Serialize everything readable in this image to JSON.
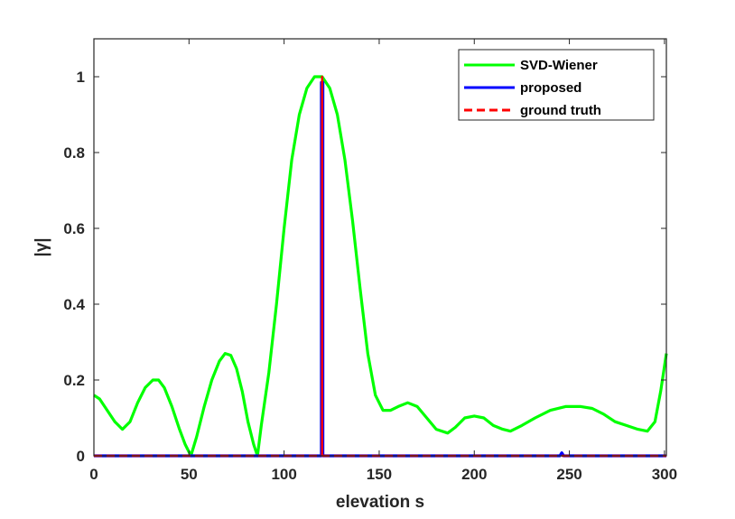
{
  "chart_data": {
    "type": "line",
    "title": "",
    "xlabel": "elevation s",
    "ylabel": "|γ|",
    "xlim": [
      0,
      301
    ],
    "ylim": [
      0,
      1.1
    ],
    "xticks": [
      0,
      50,
      100,
      150,
      200,
      250,
      300
    ],
    "yticks": [
      0,
      0.2,
      0.4,
      0.6,
      0.8,
      1
    ],
    "xtick_labels": [
      "0",
      "50",
      "100",
      "150",
      "200",
      "250",
      "300"
    ],
    "ytick_labels": [
      "0",
      "0.2",
      "0.4",
      "0.6",
      "0.8",
      "1"
    ],
    "grid": false,
    "legend_position": "top-right",
    "series": [
      {
        "name": "SVD-Wiener",
        "color": "#00ff00",
        "style": "solid",
        "x": [
          0,
          3,
          7,
          11,
          15,
          19,
          23,
          27,
          31,
          34,
          37,
          41,
          45,
          48,
          51,
          54,
          58,
          62,
          66,
          69,
          72,
          75,
          78,
          81,
          84,
          86,
          88,
          92,
          96,
          100,
          104,
          108,
          112,
          116,
          120,
          124,
          128,
          132,
          136,
          140,
          144,
          148,
          152,
          156,
          160,
          165,
          170,
          175,
          180,
          186,
          190,
          195,
          200,
          205,
          210,
          215,
          219,
          225,
          232,
          240,
          248,
          256,
          262,
          268,
          274,
          280,
          286,
          291,
          295,
          298,
          301
        ],
        "y": [
          0.16,
          0.15,
          0.12,
          0.09,
          0.07,
          0.09,
          0.14,
          0.18,
          0.2,
          0.2,
          0.18,
          0.13,
          0.07,
          0.03,
          0.0,
          0.05,
          0.13,
          0.2,
          0.25,
          0.27,
          0.265,
          0.23,
          0.17,
          0.09,
          0.03,
          0.0,
          0.08,
          0.22,
          0.4,
          0.6,
          0.78,
          0.9,
          0.97,
          1.0,
          1.0,
          0.97,
          0.9,
          0.78,
          0.62,
          0.44,
          0.27,
          0.16,
          0.12,
          0.12,
          0.13,
          0.14,
          0.13,
          0.1,
          0.07,
          0.06,
          0.075,
          0.1,
          0.105,
          0.1,
          0.08,
          0.07,
          0.065,
          0.08,
          0.1,
          0.12,
          0.13,
          0.13,
          0.125,
          0.11,
          0.09,
          0.08,
          0.07,
          0.065,
          0.09,
          0.17,
          0.27
        ]
      },
      {
        "name": "proposed",
        "color": "#0000ff",
        "style": "solid",
        "x": [
          0,
          119.6,
          119.6,
          120.4,
          120.4,
          245,
          246,
          247,
          301
        ],
        "y": [
          0,
          0,
          0.985,
          0.985,
          0,
          0,
          0.008,
          0,
          0
        ]
      },
      {
        "name": "ground truth",
        "color": "#ff0000",
        "style": "dashed",
        "x": [
          0,
          120,
          120,
          120,
          301
        ],
        "y": [
          0,
          0,
          1.0,
          0,
          0
        ]
      }
    ]
  }
}
